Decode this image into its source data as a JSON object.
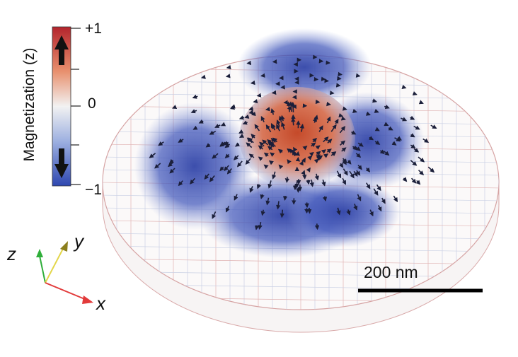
{
  "colorbar": {
    "title": "Magnetization (z)",
    "tick_top": "+1",
    "tick_mid": "0",
    "tick_bottom": "−1",
    "color_top": "#b3242c",
    "color_mid": "#f2f2f2",
    "color_bottom": "#2e47b0",
    "icon_top": "arrow-up-icon",
    "icon_bottom": "arrow-down-icon"
  },
  "axes": {
    "z": "z",
    "y": "y",
    "x": "x"
  },
  "scale_bar": {
    "label": "200 nm"
  }
}
